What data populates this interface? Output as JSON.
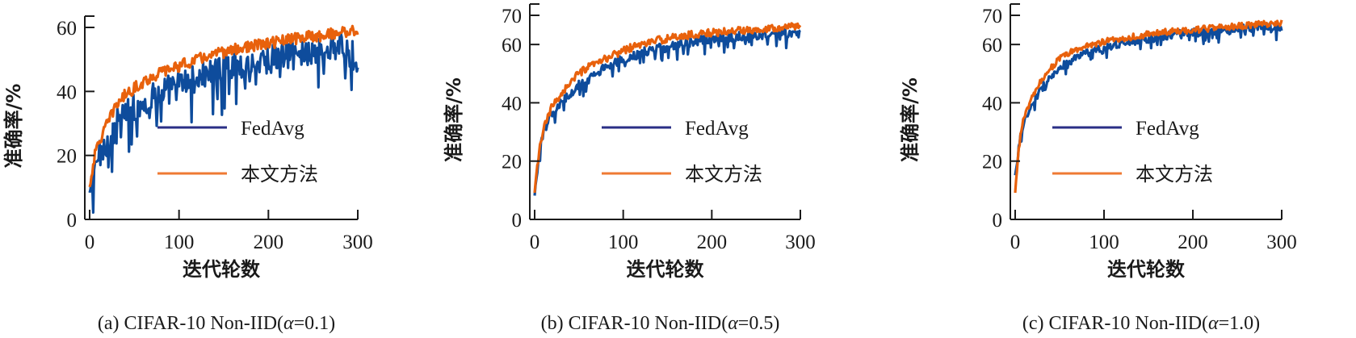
{
  "chart_data": [
    {
      "type": "line",
      "caption_prefix": "(a) CIFAR-10 Non-IID(",
      "caption_alpha": "α",
      "caption_suffix": "=0.1)",
      "xlabel": "迭代轮数",
      "ylabel": "准确率/%",
      "xlim": [
        0,
        300
      ],
      "ylim": [
        0,
        60
      ],
      "xticks": [
        "0",
        "100",
        "200",
        "300"
      ],
      "yticks": [
        "0",
        "20",
        "40",
        "60"
      ],
      "grid": false,
      "legend_position": "center-right",
      "legend": [
        "FedAvg",
        "本文方法"
      ],
      "series": [
        {
          "name": "FedAvg",
          "color": "#0e4c9c",
          "x": [
            0,
            5,
            10,
            15,
            20,
            25,
            30,
            40,
            50,
            60,
            70,
            80,
            90,
            100,
            120,
            140,
            160,
            180,
            200,
            220,
            240,
            260,
            280,
            300
          ],
          "values": [
            8,
            15,
            20,
            22,
            24,
            27,
            30,
            33,
            35,
            37,
            38,
            40,
            41,
            42,
            44,
            46,
            48,
            49,
            50,
            51,
            52,
            53,
            54,
            50
          ],
          "noise": 4.5
        },
        {
          "name": "本文方法",
          "color": "#e8610c",
          "x": [
            0,
            5,
            10,
            15,
            20,
            25,
            30,
            40,
            50,
            60,
            70,
            80,
            90,
            100,
            120,
            140,
            160,
            180,
            200,
            220,
            240,
            260,
            280,
            300
          ],
          "values": [
            10,
            19,
            24,
            27,
            30,
            33,
            36,
            39,
            41,
            43,
            44.5,
            46,
            47,
            48,
            50,
            51.5,
            53,
            54,
            55,
            56,
            57,
            57.5,
            58.5,
            59
          ],
          "noise": 1.8
        }
      ]
    },
    {
      "type": "line",
      "caption_prefix": "(b) CIFAR-10 Non-IID(",
      "caption_alpha": "α",
      "caption_suffix": "=0.5)",
      "xlabel": "迭代轮数",
      "ylabel": "准确率/%",
      "xlim": [
        0,
        300
      ],
      "ylim": [
        0,
        70
      ],
      "xticks": [
        "0",
        "100",
        "200",
        "300"
      ],
      "yticks": [
        "0",
        "20",
        "40",
        "60",
        "70"
      ],
      "grid": false,
      "legend_position": "center-right",
      "legend": [
        "FedAvg",
        "本文方法"
      ],
      "series": [
        {
          "name": "FedAvg",
          "color": "#0e4c9c",
          "x": [
            0,
            3,
            6,
            10,
            15,
            20,
            30,
            40,
            50,
            60,
            80,
            100,
            120,
            140,
            160,
            180,
            200,
            220,
            240,
            260,
            280,
            300
          ],
          "values": [
            8,
            17,
            24,
            29,
            34,
            37,
            40,
            43,
            46,
            48,
            52,
            55,
            57,
            59,
            60,
            61,
            62,
            62.5,
            63,
            63.5,
            64,
            64
          ],
          "noise": 1.6
        },
        {
          "name": "本文方法",
          "color": "#e8610c",
          "x": [
            0,
            3,
            6,
            10,
            15,
            20,
            30,
            40,
            50,
            60,
            80,
            100,
            120,
            140,
            160,
            180,
            200,
            220,
            240,
            260,
            280,
            300
          ],
          "values": [
            9,
            18,
            25,
            31,
            35,
            39,
            43,
            47,
            50,
            52,
            55,
            58,
            60,
            61.5,
            62.5,
            63.5,
            64,
            64.5,
            65,
            65.5,
            66,
            66.5
          ],
          "noise": 1.3
        }
      ]
    },
    {
      "type": "line",
      "caption_prefix": "(c) CIFAR-10 Non-IID(",
      "caption_alpha": "α",
      "caption_suffix": "=1.0)",
      "xlabel": "迭代轮数",
      "ylabel": "准确率/%",
      "xlim": [
        0,
        300
      ],
      "ylim": [
        0,
        70
      ],
      "xticks": [
        "0",
        "100",
        "200",
        "300"
      ],
      "yticks": [
        "0",
        "20",
        "40",
        "60",
        "70"
      ],
      "grid": false,
      "legend_position": "center-right",
      "legend": [
        "FedAvg",
        "本文方法"
      ],
      "series": [
        {
          "name": "FedAvg",
          "color": "#0e4c9c",
          "x": [
            0,
            3,
            6,
            10,
            15,
            20,
            30,
            40,
            50,
            60,
            80,
            100,
            120,
            140,
            160,
            180,
            200,
            220,
            240,
            260,
            280,
            300
          ],
          "values": [
            15,
            22,
            28,
            33,
            37,
            40,
            45,
            49,
            52,
            54,
            57,
            59,
            60.5,
            61.5,
            62.5,
            63.5,
            64,
            64.5,
            65,
            65.5,
            66,
            66
          ],
          "noise": 1.4
        },
        {
          "name": "本文方法",
          "color": "#e8610c",
          "x": [
            0,
            3,
            6,
            10,
            15,
            20,
            30,
            40,
            50,
            60,
            80,
            100,
            120,
            140,
            160,
            180,
            200,
            220,
            240,
            260,
            280,
            300
          ],
          "values": [
            9,
            21,
            29,
            35,
            39,
            42,
            48,
            52,
            55,
            57,
            59.5,
            61,
            62,
            63,
            64,
            64.5,
            65,
            65.5,
            66,
            66.5,
            67,
            67.5
          ],
          "noise": 1.1
        }
      ]
    }
  ]
}
